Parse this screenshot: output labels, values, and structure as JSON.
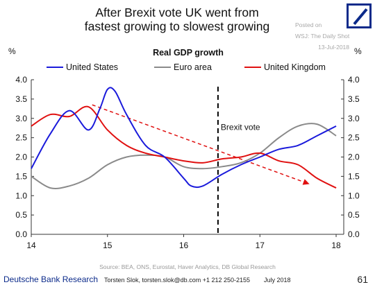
{
  "header": {
    "title_line1": "After Brexit vote UK went from",
    "title_line2": "fastest growing to slowest growing"
  },
  "watermark": {
    "line1": "Posted on",
    "line2": "WSJ: The Daily Shot",
    "line3": "13-Jul-2018"
  },
  "footer": {
    "brand": "Deutsche Bank Research",
    "author": "Torsten Slok, torsten.slok@db.com  +1 212 250-2155",
    "date": "July 2018",
    "page": "61",
    "source": "Source: BEA, ONS, Eurostat, Haver Analytics, DB Global Research"
  },
  "colors": {
    "united_states": "#1a1adb",
    "euro_area": "#8a8a8a",
    "united_kingdom": "#e01010",
    "logo": "#0b2a8a"
  },
  "chart_data": {
    "type": "line",
    "title": "Real GDP growth",
    "ylabel_left": "%",
    "ylabel_right": "%",
    "xlim": [
      14,
      18.1
    ],
    "ylim": [
      0,
      4
    ],
    "x_ticks": [
      14,
      15,
      16,
      17,
      18
    ],
    "x_tick_labels": [
      "14",
      "15",
      "16",
      "17",
      "18"
    ],
    "y_ticks": [
      0,
      0.5,
      1,
      1.5,
      2,
      2.5,
      3,
      3.5,
      4
    ],
    "y_tick_labels": [
      "0.0",
      "0.5",
      "1.0",
      "1.5",
      "2.0",
      "2.5",
      "3.0",
      "3.5",
      "4.0"
    ],
    "legend_position": "top",
    "series": [
      {
        "name": "United States",
        "color": "#1a1adb",
        "x": [
          14.0,
          14.25,
          14.5,
          14.75,
          14.9,
          15.0,
          15.1,
          15.25,
          15.5,
          15.75,
          16.0,
          16.1,
          16.25,
          16.5,
          16.75,
          17.0,
          17.25,
          17.5,
          17.75,
          18.0
        ],
        "y": [
          1.7,
          2.6,
          3.2,
          2.7,
          3.25,
          3.75,
          3.7,
          3.1,
          2.3,
          2.0,
          1.45,
          1.25,
          1.25,
          1.55,
          1.8,
          2.0,
          2.2,
          2.3,
          2.55,
          2.8
        ]
      },
      {
        "name": "Euro area",
        "color": "#8a8a8a",
        "x": [
          14.0,
          14.25,
          14.5,
          14.75,
          15.0,
          15.25,
          15.5,
          15.75,
          16.0,
          16.25,
          16.5,
          16.75,
          17.0,
          17.25,
          17.5,
          17.75,
          18.0
        ],
        "y": [
          1.5,
          1.2,
          1.25,
          1.45,
          1.8,
          2.0,
          2.05,
          2.0,
          1.75,
          1.7,
          1.75,
          1.85,
          2.1,
          2.5,
          2.8,
          2.85,
          2.55
        ]
      },
      {
        "name": "United Kingdom",
        "color": "#e01010",
        "x": [
          14.0,
          14.25,
          14.5,
          14.75,
          15.0,
          15.25,
          15.5,
          15.75,
          16.0,
          16.25,
          16.5,
          16.75,
          17.0,
          17.25,
          17.5,
          17.75,
          18.0
        ],
        "y": [
          2.8,
          3.1,
          3.05,
          3.3,
          2.7,
          2.3,
          2.1,
          2.0,
          1.9,
          1.85,
          1.95,
          2.0,
          2.1,
          1.9,
          1.8,
          1.45,
          1.2
        ]
      }
    ],
    "annotations": [
      {
        "type": "vline",
        "x": 16.45,
        "style": "dashed",
        "color": "#000000",
        "label": "Brexit vote",
        "label_y": 2.75
      },
      {
        "type": "arrow",
        "x1": 14.8,
        "y1": 3.35,
        "x2": 17.65,
        "y2": 1.3,
        "style": "dashed",
        "color": "#e01010"
      }
    ]
  }
}
